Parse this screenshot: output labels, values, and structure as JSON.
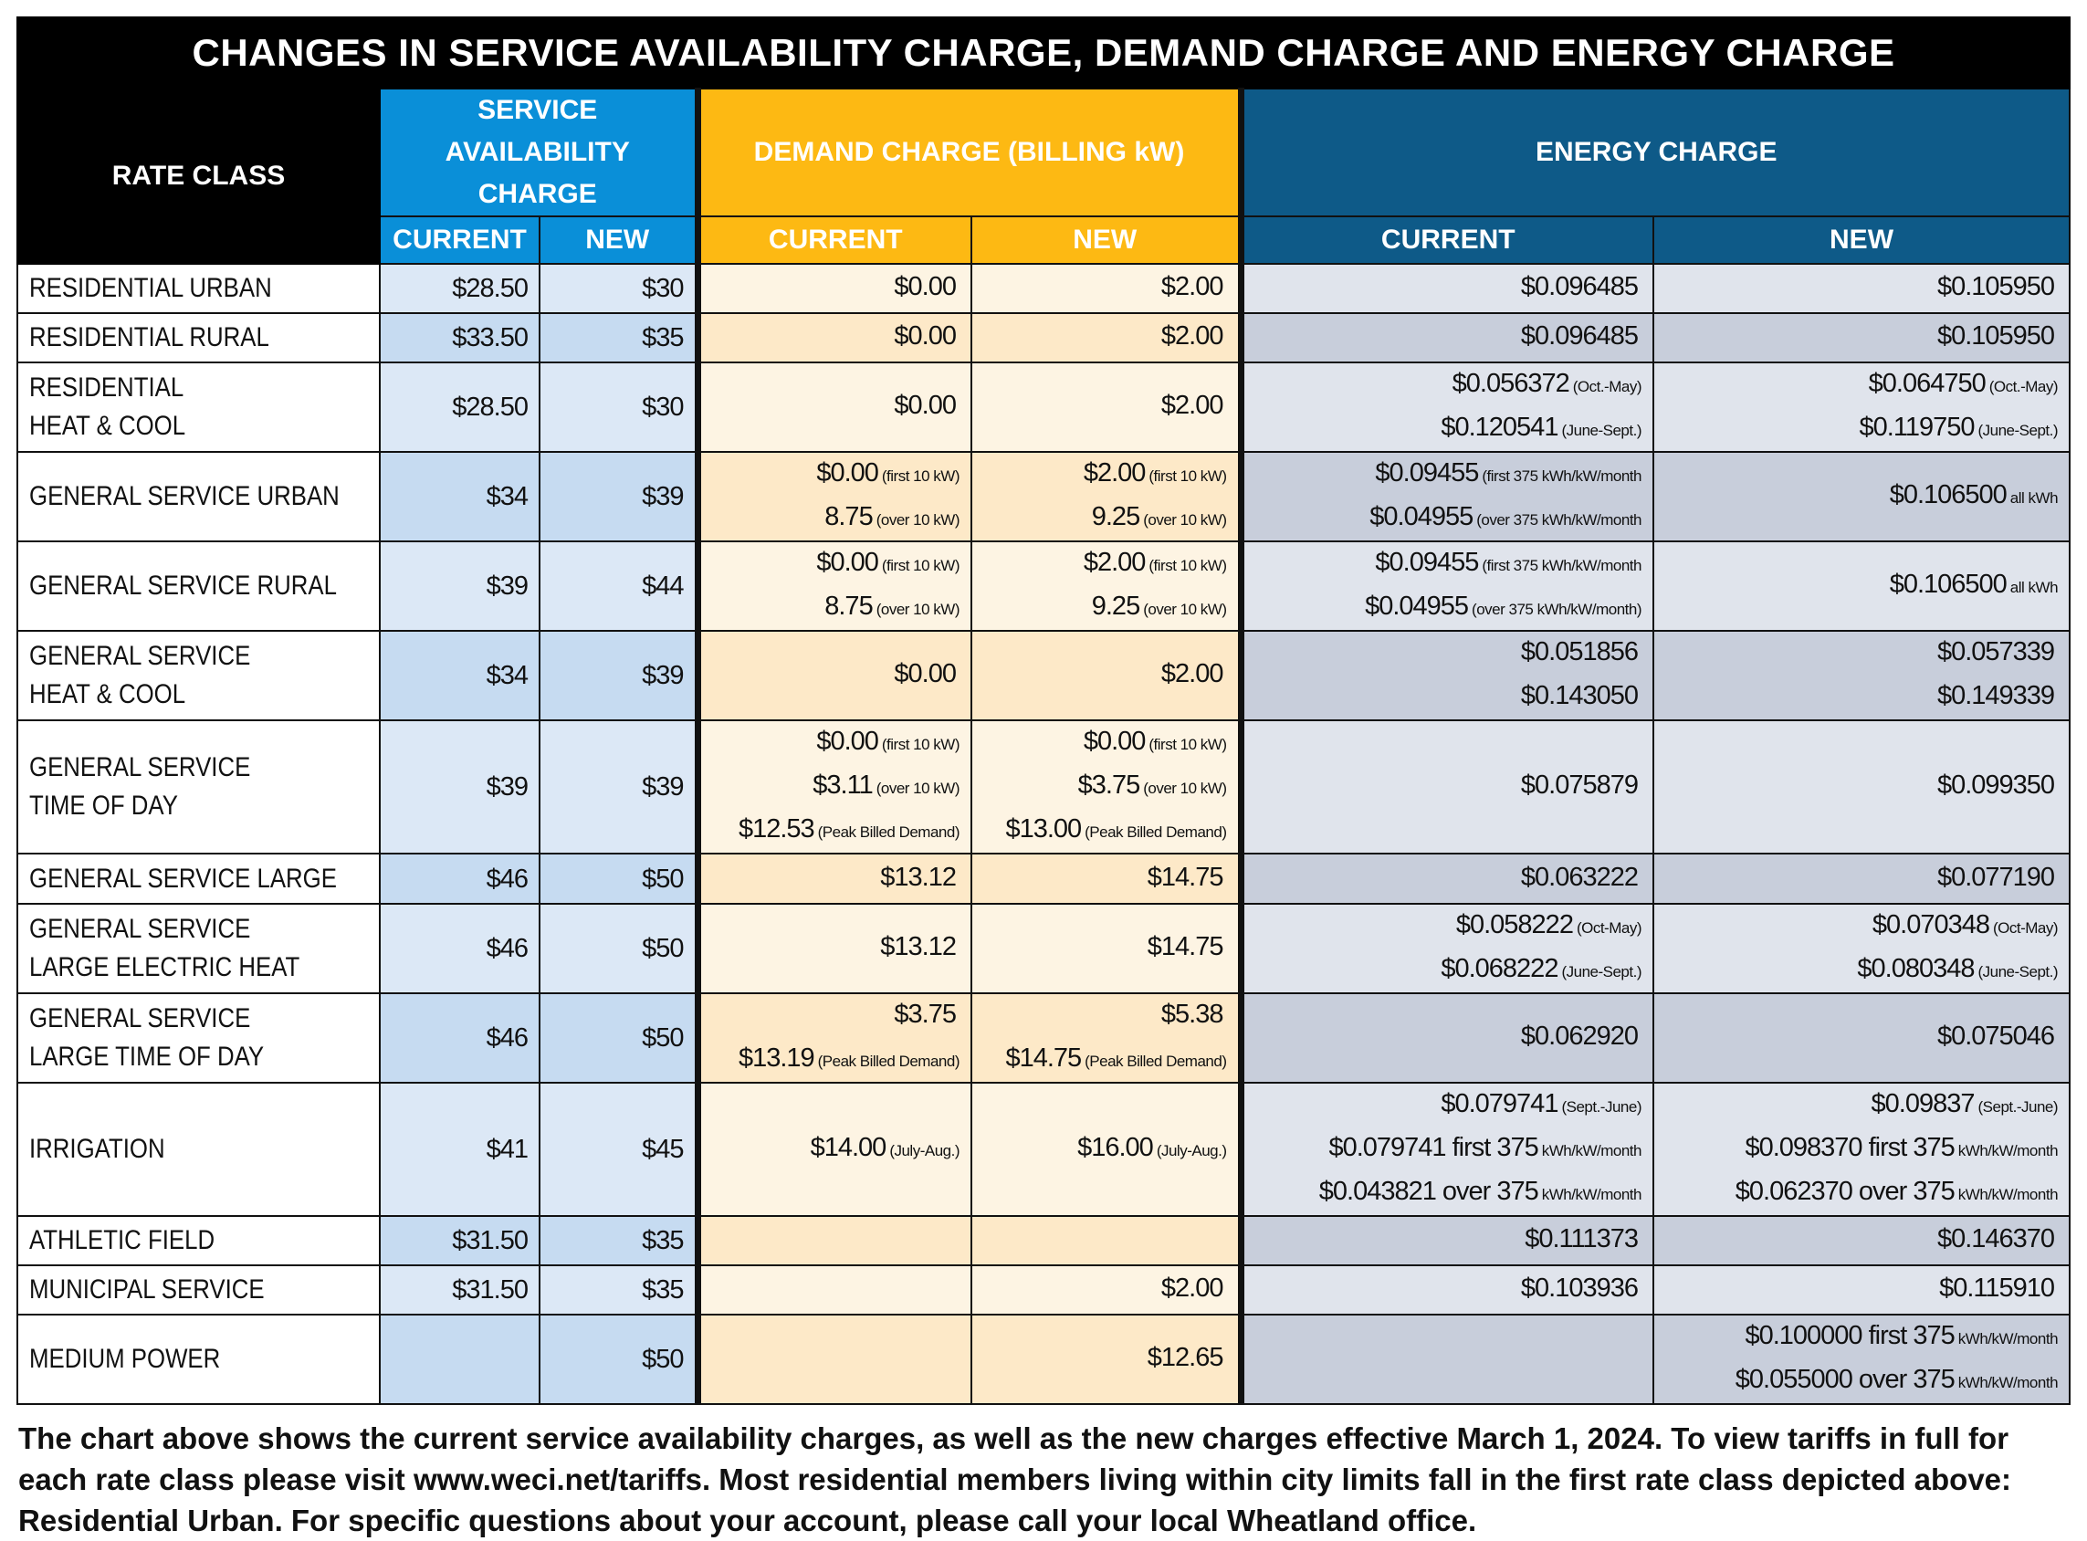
{
  "title": "CHANGES IN SERVICE AVAILABILITY CHARGE, DEMAND CHARGE AND ENERGY CHARGE",
  "headers": {
    "rate_class": "RATE CLASS",
    "service_availability": "SERVICE AVAILABILITY CHARGE",
    "demand": "DEMAND CHARGE (BILLING kW)",
    "energy": "ENERGY CHARGE",
    "current": "CURRENT",
    "new": "NEW"
  },
  "colors": {
    "service_availability": "#0a8fd8",
    "demand": "#fdb913",
    "energy": "#0e5a88",
    "title_bar": "#000000"
  },
  "rows": [
    {
      "name": [
        "RESIDENTIAL URBAN"
      ],
      "sa_current": "$28.50",
      "sa_new": "$30",
      "dm_current": [
        [
          "$0.00",
          ""
        ]
      ],
      "dm_new": [
        [
          "$2.00",
          ""
        ]
      ],
      "en_current": [
        [
          "$0.096485",
          ""
        ]
      ],
      "en_new": [
        [
          "$0.105950",
          ""
        ]
      ]
    },
    {
      "name": [
        "RESIDENTIAL RURAL"
      ],
      "sa_current": "$33.50",
      "sa_new": "$35",
      "dm_current": [
        [
          "$0.00",
          ""
        ]
      ],
      "dm_new": [
        [
          "$2.00",
          ""
        ]
      ],
      "en_current": [
        [
          "$0.096485",
          ""
        ]
      ],
      "en_new": [
        [
          "$0.105950",
          ""
        ]
      ]
    },
    {
      "name": [
        "RESIDENTIAL",
        "HEAT & COOL"
      ],
      "sa_current": "$28.50",
      "sa_new": "$30",
      "dm_current": [
        [
          "$0.00",
          ""
        ]
      ],
      "dm_new": [
        [
          "$2.00",
          ""
        ]
      ],
      "en_current": [
        [
          "$0.056372",
          "(Oct.-May)"
        ],
        [
          "$0.120541",
          "(June-Sept.)"
        ]
      ],
      "en_new": [
        [
          "$0.064750",
          "(Oct.-May)"
        ],
        [
          "$0.119750",
          "(June-Sept.)"
        ]
      ]
    },
    {
      "name": [
        "GENERAL SERVICE URBAN"
      ],
      "sa_current": "$34",
      "sa_new": "$39",
      "dm_current": [
        [
          "$0.00",
          "(first 10 kW)"
        ],
        [
          "8.75",
          "(over 10 kW)"
        ]
      ],
      "dm_new": [
        [
          "$2.00",
          "(first 10 kW)"
        ],
        [
          "9.25",
          "(over 10 kW)"
        ]
      ],
      "en_current": [
        [
          "$0.09455",
          "(first 375 kWh/kW/month"
        ],
        [
          "$0.04955",
          "(over 375 kWh/kW/month"
        ]
      ],
      "en_new": [
        [
          "$0.106500",
          "all kWh"
        ]
      ]
    },
    {
      "name": [
        "GENERAL SERVICE RURAL"
      ],
      "sa_current": "$39",
      "sa_new": "$44",
      "dm_current": [
        [
          "$0.00",
          "(first 10 kW)"
        ],
        [
          "8.75",
          "(over 10 kW)"
        ]
      ],
      "dm_new": [
        [
          "$2.00",
          "(first 10 kW)"
        ],
        [
          "9.25",
          "(over 10 kW)"
        ]
      ],
      "en_current": [
        [
          "$0.09455",
          "(first 375 kWh/kW/month"
        ],
        [
          "$0.04955",
          "(over 375 kWh/kW/month)"
        ]
      ],
      "en_new": [
        [
          "$0.106500",
          "all kWh"
        ]
      ]
    },
    {
      "name": [
        "GENERAL SERVICE",
        "HEAT & COOL"
      ],
      "sa_current": "$34",
      "sa_new": "$39",
      "dm_current": [
        [
          "$0.00",
          ""
        ]
      ],
      "dm_new": [
        [
          "$2.00",
          ""
        ]
      ],
      "en_current": [
        [
          "$0.051856",
          ""
        ],
        [
          "$0.143050",
          ""
        ]
      ],
      "en_new": [
        [
          "$0.057339",
          ""
        ],
        [
          "$0.149339",
          ""
        ]
      ]
    },
    {
      "name": [
        "GENERAL SERVICE",
        "TIME OF DAY"
      ],
      "sa_current": "$39",
      "sa_new": "$39",
      "dm_current": [
        [
          "$0.00",
          "(first 10 kW)"
        ],
        [
          "$3.11",
          "(over 10 kW)"
        ],
        [
          "$12.53",
          "(Peak Billed Demand)"
        ]
      ],
      "dm_new": [
        [
          "$0.00",
          "(first 10 kW)"
        ],
        [
          "$3.75",
          "(over 10 kW)"
        ],
        [
          "$13.00",
          "(Peak Billed Demand)"
        ]
      ],
      "en_current": [
        [
          "$0.075879",
          ""
        ]
      ],
      "en_new": [
        [
          "$0.099350",
          ""
        ]
      ]
    },
    {
      "name": [
        "GENERAL SERVICE LARGE"
      ],
      "sa_current": "$46",
      "sa_new": "$50",
      "dm_current": [
        [
          "$13.12",
          ""
        ]
      ],
      "dm_new": [
        [
          "$14.75",
          ""
        ]
      ],
      "en_current": [
        [
          "$0.063222",
          ""
        ]
      ],
      "en_new": [
        [
          "$0.077190",
          ""
        ]
      ]
    },
    {
      "name": [
        "GENERAL SERVICE",
        "LARGE ELECTRIC HEAT"
      ],
      "sa_current": "$46",
      "sa_new": "$50",
      "dm_current": [
        [
          "$13.12",
          ""
        ]
      ],
      "dm_new": [
        [
          "$14.75",
          ""
        ]
      ],
      "en_current": [
        [
          "$0.058222",
          "(Oct-May)"
        ],
        [
          "$0.068222",
          "(June-Sept.)"
        ]
      ],
      "en_new": [
        [
          "$0.070348",
          "(Oct-May)"
        ],
        [
          "$0.080348",
          "(June-Sept.)"
        ]
      ]
    },
    {
      "name": [
        "GENERAL SERVICE",
        "LARGE TIME OF DAY"
      ],
      "sa_current": "$46",
      "sa_new": "$50",
      "dm_current": [
        [
          "$3.75",
          ""
        ],
        [
          "$13.19",
          "(Peak Billed Demand)"
        ]
      ],
      "dm_new": [
        [
          "$5.38",
          ""
        ],
        [
          "$14.75",
          "(Peak Billed Demand)"
        ]
      ],
      "en_current": [
        [
          "$0.062920",
          ""
        ]
      ],
      "en_new": [
        [
          "$0.075046",
          ""
        ]
      ]
    },
    {
      "name": [
        "IRRIGATION"
      ],
      "sa_current": "$41",
      "sa_new": "$45",
      "dm_current": [
        [
          "$14.00",
          "(July-Aug.)"
        ]
      ],
      "dm_new": [
        [
          "$16.00",
          "(July-Aug.)"
        ]
      ],
      "en_current": [
        [
          "$0.079741",
          "(Sept.-June)"
        ],
        [
          "$0.079741 first 375",
          "kWh/kW/month"
        ],
        [
          "$0.043821 over 375",
          "kWh/kW/month"
        ]
      ],
      "en_new": [
        [
          "$0.09837",
          "(Sept.-June)"
        ],
        [
          "$0.098370 first 375",
          "kWh/kW/month"
        ],
        [
          "$0.062370 over 375",
          "kWh/kW/month"
        ]
      ]
    },
    {
      "name": [
        "ATHLETIC FIELD"
      ],
      "sa_current": "$31.50",
      "sa_new": "$35",
      "dm_current": [],
      "dm_new": [],
      "en_current": [
        [
          "$0.111373",
          ""
        ]
      ],
      "en_new": [
        [
          "$0.146370",
          ""
        ]
      ]
    },
    {
      "name": [
        "MUNICIPAL SERVICE"
      ],
      "sa_current": "$31.50",
      "sa_new": "$35",
      "dm_current": [],
      "dm_new": [
        [
          "$2.00",
          ""
        ]
      ],
      "en_current": [
        [
          "$0.103936",
          ""
        ]
      ],
      "en_new": [
        [
          "$0.115910",
          ""
        ]
      ]
    },
    {
      "name": [
        "MEDIUM POWER"
      ],
      "sa_current": "",
      "sa_new": "$50",
      "dm_current": [],
      "dm_new": [
        [
          "$12.65",
          ""
        ]
      ],
      "en_current": [],
      "en_new": [
        [
          "$0.100000 first 375",
          "kWh/kW/month"
        ],
        [
          "$0.055000 over 375",
          "kWh/kW/month"
        ]
      ]
    }
  ],
  "footer": "The chart above shows the current service availability charges, as well as the new charges effective March 1, 2024. To view tariffs in full for each rate class please visit www.weci.net/tariffs. Most residential members living within city limits fall in the first rate class depicted above: Residential Urban. For specific questions about your account, please call your local Wheatland office."
}
